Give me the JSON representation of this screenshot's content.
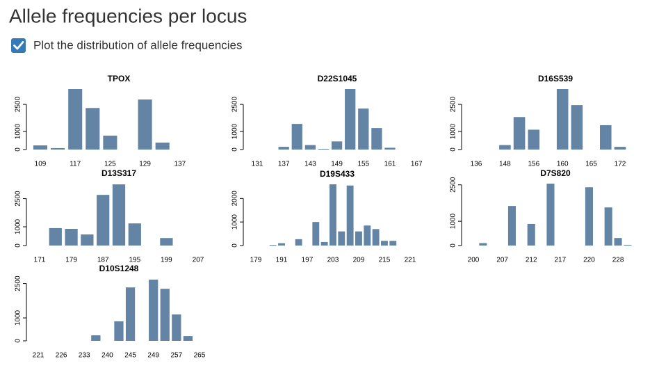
{
  "header": {
    "title": "Allele frequencies per locus",
    "checkbox_label": "Plot the distribution of allele frequencies"
  },
  "chart_data": [
    {
      "type": "bar",
      "title": "TPOX",
      "color": "#6384a4",
      "categories": [
        "109",
        null,
        "117",
        null,
        "125",
        null,
        "129",
        null,
        "137"
      ],
      "values": [
        230,
        80,
        3350,
        2300,
        770,
        0,
        2770,
        385,
        0
      ],
      "ylim": [
        0,
        3350
      ],
      "yticks": [
        0,
        1000,
        2500
      ]
    },
    {
      "type": "bar",
      "title": "D22S1045",
      "color": "#6384a4",
      "categories": [
        "131",
        null,
        "137",
        null,
        "143",
        null,
        "149",
        null,
        "155",
        null,
        "161",
        null,
        "167"
      ],
      "values": [
        0,
        0,
        150,
        1420,
        250,
        40,
        450,
        3350,
        2270,
        1190,
        100,
        0,
        0
      ],
      "ylim": [
        0,
        3350
      ],
      "yticks": [
        0,
        1000,
        2500
      ]
    },
    {
      "type": "bar",
      "title": "D16S539",
      "color": "#6384a4",
      "categories": [
        "136",
        null,
        "148",
        null,
        "156",
        null,
        "160",
        null,
        "165",
        null,
        "172"
      ],
      "values": [
        0,
        0,
        250,
        1800,
        1100,
        0,
        3350,
        2460,
        0,
        1350,
        150
      ],
      "ylim": [
        0,
        3350
      ],
      "yticks": [
        0,
        1000,
        2500
      ]
    },
    {
      "type": "bar",
      "title": "D13S317",
      "color": "#6384a4",
      "categories": [
        "171",
        null,
        "179",
        null,
        "187",
        null,
        "195",
        null,
        "199",
        null,
        "207"
      ],
      "values": [
        0,
        930,
        890,
        590,
        2700,
        3260,
        1180,
        0,
        400,
        0,
        0
      ],
      "ylim": [
        0,
        3300
      ],
      "yticks": [
        0,
        1000,
        2500
      ]
    },
    {
      "type": "bar",
      "title": "D19S433",
      "color": "#6384a4",
      "categories": [
        "179",
        null,
        null,
        "191",
        null,
        null,
        "197",
        null,
        null,
        "203",
        null,
        null,
        "209",
        null,
        null,
        "215",
        null,
        null,
        "221"
      ],
      "values": [
        0,
        0,
        30,
        100,
        0,
        270,
        0,
        1000,
        150,
        2600,
        600,
        2550,
        600,
        850,
        700,
        200,
        200,
        0,
        0
      ],
      "ylim": [
        0,
        2600
      ],
      "yticks": [
        0,
        1000,
        2000
      ]
    },
    {
      "type": "bar",
      "title": "D7S820",
      "color": "#6384a4",
      "categories": [
        "200",
        null,
        null,
        "207",
        null,
        null,
        "212",
        null,
        null,
        "217",
        null,
        null,
        "220",
        null,
        null,
        "228",
        null
      ],
      "values": [
        0,
        100,
        0,
        0,
        1630,
        0,
        890,
        0,
        2550,
        0,
        0,
        0,
        2400,
        0,
        1570,
        310,
        30
      ],
      "ylim": [
        0,
        2550
      ],
      "yticks": [
        0,
        1000,
        2500
      ]
    },
    {
      "type": "bar",
      "title": "D10S1248",
      "color": "#6384a4",
      "categories": [
        "221",
        null,
        "226",
        null,
        "233",
        null,
        "240",
        null,
        "245",
        null,
        "249",
        null,
        "257",
        null,
        "265"
      ],
      "values": [
        0,
        0,
        0,
        0,
        0,
        240,
        0,
        850,
        2330,
        0,
        2670,
        2270,
        1150,
        210,
        0
      ],
      "ylim": [
        0,
        2700
      ],
      "yticks": [
        0,
        1000,
        2500
      ]
    }
  ]
}
